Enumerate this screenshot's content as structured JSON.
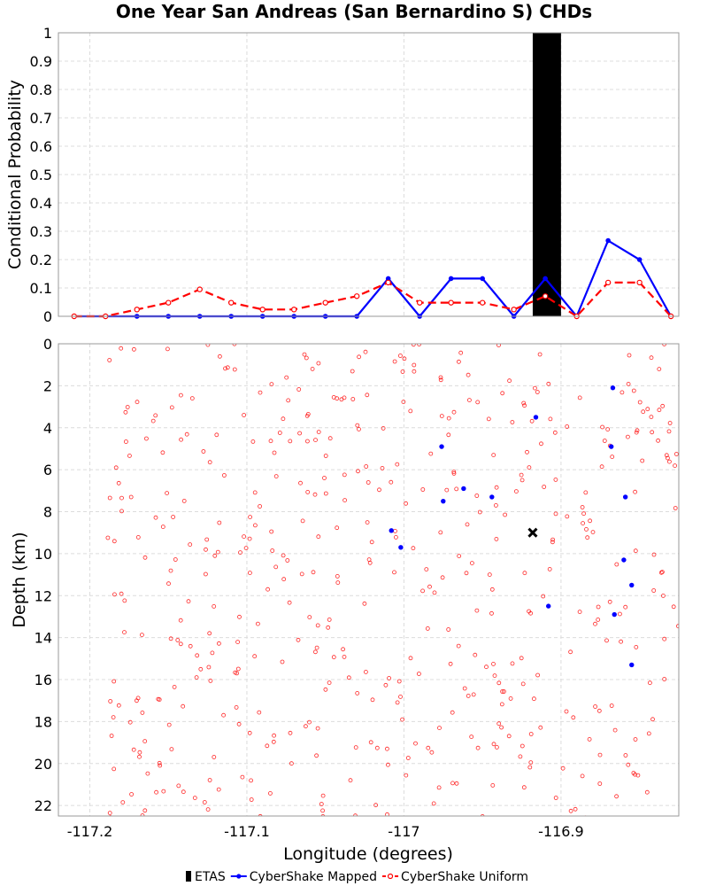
{
  "chart_data": {
    "title": "One Year San Andreas (San Bernardino S) CHDs",
    "xlabel": "Longitude (degrees)",
    "xlim": [
      -117.22,
      -116.825
    ],
    "xticks": [
      -117.2,
      -117.1,
      -117,
      -116.9
    ],
    "xtick_labels": [
      "-117.2",
      "-117.1",
      "-117",
      "-116.9"
    ],
    "grid": true,
    "legend": {
      "position": "bottom-center",
      "entries": [
        {
          "label": "ETAS",
          "color": "#000000",
          "style": "bar"
        },
        {
          "label": "CyberShake Mapped",
          "color": "#0000ff",
          "style": "solid-line-filled-dot"
        },
        {
          "label": "CyberShake Uniform",
          "color": "#ff0000",
          "style": "dashed-line-open-circle"
        }
      ]
    },
    "top_panel": {
      "type": "line",
      "ylabel": "Conditional Probability",
      "ylim": [
        0,
        1
      ],
      "yticks": [
        0,
        0.1,
        0.2,
        0.3,
        0.4,
        0.5,
        0.6,
        0.7,
        0.8,
        0.9,
        1
      ],
      "ytick_labels": [
        "0",
        "0.1",
        "0.2",
        "0.3",
        "0.4",
        "0.5",
        "0.6",
        "0.7",
        "0.8",
        "0.9",
        "1"
      ],
      "etas_bar": {
        "x0": -116.918,
        "x1": -116.9,
        "value": 1.0
      },
      "series": [
        {
          "name": "CyberShake Mapped",
          "color": "#0000ff",
          "x": [
            -117.21,
            -117.19,
            -117.17,
            -117.15,
            -117.13,
            -117.11,
            -117.09,
            -117.07,
            -117.05,
            -117.03,
            -117.01,
            -116.99,
            -116.97,
            -116.95,
            -116.93,
            -116.91,
            -116.89,
            -116.87,
            -116.85,
            -116.83
          ],
          "y": [
            0,
            0,
            0,
            0,
            0,
            0,
            0,
            0,
            0,
            0,
            0.133,
            0,
            0.133,
            0.133,
            0,
            0.133,
            0,
            0.267,
            0.2,
            0
          ]
        },
        {
          "name": "CyberShake Uniform",
          "color": "#ff0000",
          "x": [
            -117.21,
            -117.19,
            -117.17,
            -117.15,
            -117.13,
            -117.11,
            -117.09,
            -117.07,
            -117.05,
            -117.03,
            -117.01,
            -116.99,
            -116.97,
            -116.95,
            -116.93,
            -116.91,
            -116.89,
            -116.87,
            -116.85,
            -116.83
          ],
          "y": [
            0,
            0,
            0.024,
            0.048,
            0.095,
            0.048,
            0.024,
            0.024,
            0.048,
            0.071,
            0.119,
            0.048,
            0.048,
            0.048,
            0.024,
            0.071,
            0,
            0.119,
            0.119,
            0
          ]
        }
      ]
    },
    "bottom_panel": {
      "type": "scatter",
      "ylabel": "Depth (km)",
      "ylim": [
        0,
        22.5
      ],
      "y_inverted": true,
      "yticks": [
        0,
        2,
        4,
        6,
        8,
        10,
        12,
        14,
        16,
        18,
        20,
        22
      ],
      "ytick_labels": [
        "0",
        "2",
        "4",
        "6",
        "8",
        "10",
        "12",
        "14",
        "16",
        "18",
        "20",
        "22"
      ],
      "hypocenter": {
        "x": -116.918,
        "y": 9.0
      },
      "mapped_points": [
        [
          -116.867,
          2.1
        ],
        [
          -116.916,
          3.5
        ],
        [
          -116.976,
          4.9
        ],
        [
          -116.868,
          4.9
        ],
        [
          -116.962,
          6.9
        ],
        [
          -116.944,
          7.3
        ],
        [
          -116.975,
          7.5
        ],
        [
          -116.859,
          7.3
        ],
        [
          -117.008,
          8.9
        ],
        [
          -117.002,
          9.7
        ],
        [
          -116.86,
          10.3
        ],
        [
          -116.855,
          11.5
        ],
        [
          -116.908,
          12.5
        ],
        [
          -116.866,
          12.9
        ],
        [
          -116.855,
          15.3
        ]
      ],
      "uniform_count": 480,
      "uniform_seed": 7,
      "uniform_xrange": [
        -117.19,
        -116.825
      ],
      "uniform_yrange": [
        0,
        22.6
      ]
    }
  }
}
